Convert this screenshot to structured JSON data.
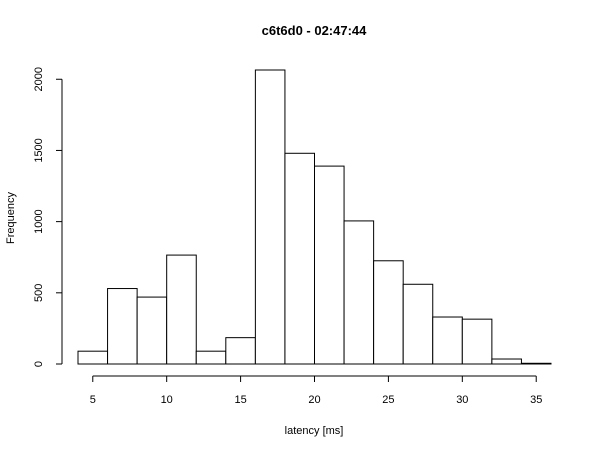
{
  "chart_data": {
    "type": "bar",
    "title": "c6t6d0 - 02:47:44",
    "xlabel": "latency [ms]",
    "ylabel": "Frequency",
    "bin_edges": [
      4,
      6,
      8,
      10,
      12,
      14,
      16,
      18,
      20,
      22,
      24,
      26,
      28,
      30,
      32,
      34,
      36
    ],
    "values": [
      90,
      530,
      470,
      765,
      90,
      185,
      2065,
      1480,
      1390,
      1005,
      725,
      560,
      330,
      315,
      35,
      5
    ],
    "xlim": [
      4,
      36
    ],
    "ylim": [
      0,
      2065
    ],
    "x_ticks": [
      5,
      10,
      15,
      20,
      25,
      30,
      35
    ],
    "y_ticks": [
      0,
      500,
      1000,
      1500,
      2000
    ],
    "grid": false,
    "bar_fill": "#ffffff",
    "bar_stroke": "#000000"
  }
}
